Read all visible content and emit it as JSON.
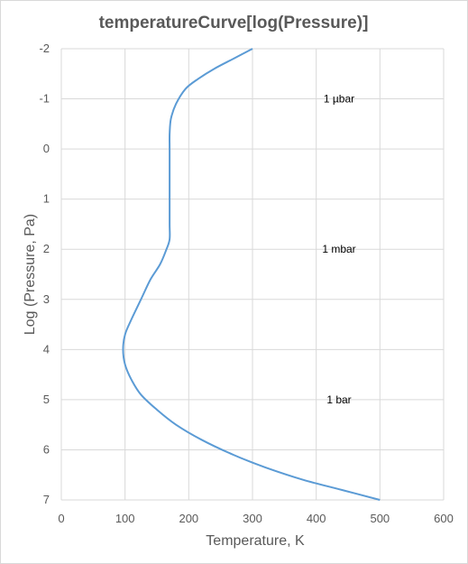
{
  "chart_data": {
    "type": "line",
    "title": "temperatureCurve[log(Pressure)]",
    "xlabel": "Temperature, K",
    "ylabel": "Log (Pressure, Pa)",
    "xlim": [
      0,
      600
    ],
    "ylim": [
      -2,
      7
    ],
    "y_reversed": true,
    "x_ticks": [
      "0",
      "100",
      "200",
      "300",
      "400",
      "500",
      "600"
    ],
    "y_ticks": [
      "-2",
      "-1",
      "0",
      "1",
      "2",
      "3",
      "4",
      "5",
      "6",
      "7"
    ],
    "grid": true,
    "line_color": "#5b9bd5",
    "series": [
      {
        "x": [
          300,
          270,
          240,
          215,
          195,
          180,
          172,
          170,
          170,
          170,
          170,
          170,
          170,
          165,
          155,
          140,
          125,
          110,
          100,
          97,
          100,
          110,
          125,
          150,
          180,
          220,
          270,
          320,
          380,
          440,
          500
        ],
        "y": [
          -2,
          -1.8,
          -1.6,
          -1.4,
          -1.2,
          -0.9,
          -0.6,
          -0.3,
          0,
          0.5,
          1,
          1.5,
          1.8,
          2.0,
          2.3,
          2.6,
          3.0,
          3.4,
          3.7,
          4.0,
          4.3,
          4.6,
          4.9,
          5.2,
          5.5,
          5.8,
          6.1,
          6.35,
          6.6,
          6.8,
          7.0
        ]
      }
    ],
    "annotations": [
      {
        "text": "1 µbar",
        "x": 450,
        "y": -1
      },
      {
        "text": "1 mbar",
        "x": 450,
        "y": 2
      },
      {
        "text": "1 bar",
        "x": 450,
        "y": 5
      }
    ]
  }
}
